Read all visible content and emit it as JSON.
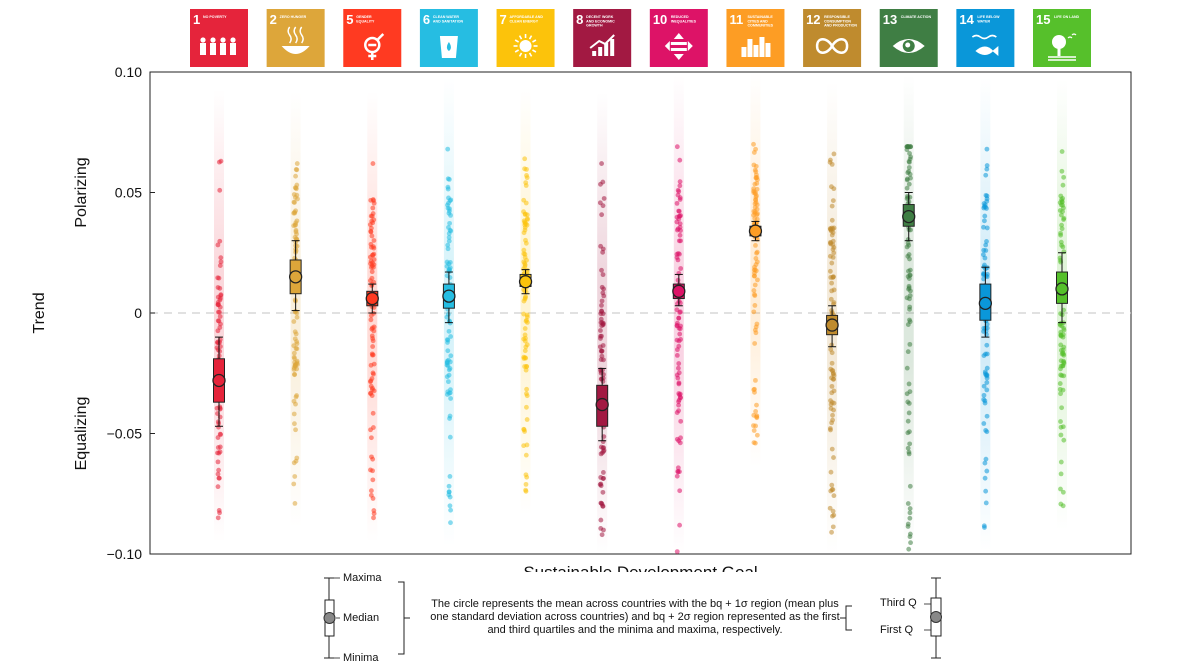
{
  "chart_data": {
    "type": "scatter",
    "ylabel": "Trend",
    "xlabel": "Sustainable Development Goal",
    "ylim": [
      -0.1,
      0.1
    ],
    "yticks": [
      0.1,
      0.05,
      0,
      -0.05,
      -0.1
    ],
    "ytick_labels": [
      "0.10",
      "0.05",
      "0",
      "−0.05",
      "−0.10"
    ],
    "region_labels": {
      "top": "Polarizing",
      "bottom": "Equalizing"
    },
    "goals": [
      {
        "num": "1",
        "title": "NO POVERTY",
        "color": "#e5243b",
        "mean": -0.028,
        "q1": -0.037,
        "q3": -0.019,
        "min": -0.047,
        "max": -0.01,
        "range": [
          -0.085,
          0.063
        ],
        "icon": "people-icon"
      },
      {
        "num": "2",
        "title": "ZERO HUNGER",
        "color": "#dda63a",
        "mean": 0.015,
        "q1": 0.008,
        "q3": 0.022,
        "min": 0.001,
        "max": 0.03,
        "range": [
          -0.079,
          0.062
        ],
        "icon": "bowl-icon"
      },
      {
        "num": "5",
        "title": "GENDER EQUALITY",
        "color": "#ff3a21",
        "mean": 0.006,
        "q1": 0.003,
        "q3": 0.009,
        "min": 0.0,
        "max": 0.012,
        "range": [
          -0.085,
          0.062
        ],
        "icon": "gender-icon"
      },
      {
        "num": "6",
        "title": "CLEAN WATER AND SANITATION",
        "color": "#26bde2",
        "mean": 0.007,
        "q1": 0.002,
        "q3": 0.012,
        "min": -0.004,
        "max": 0.017,
        "range": [
          -0.087,
          0.068
        ],
        "icon": "water-icon"
      },
      {
        "num": "7",
        "title": "AFFORDABLE AND CLEAN ENERGY",
        "color": "#fcc30b",
        "mean": 0.013,
        "q1": 0.011,
        "q3": 0.016,
        "min": 0.008,
        "max": 0.018,
        "range": [
          -0.074,
          0.064
        ],
        "icon": "sun-icon"
      },
      {
        "num": "8",
        "title": "DECENT WORK AND ECONOMIC GROWTH",
        "color": "#a21942",
        "mean": -0.038,
        "q1": -0.047,
        "q3": -0.03,
        "min": -0.053,
        "max": -0.023,
        "range": [
          -0.092,
          0.062
        ],
        "icon": "growth-chart-icon"
      },
      {
        "num": "10",
        "title": "REDUCED INEQUALITIES",
        "color": "#dd1367",
        "mean": 0.009,
        "q1": 0.006,
        "q3": 0.012,
        "min": 0.003,
        "max": 0.016,
        "range": [
          -0.099,
          0.069
        ],
        "icon": "equality-icon"
      },
      {
        "num": "11",
        "title": "SUSTAINABLE CITIES AND COMMUNITIES",
        "color": "#fd9d24",
        "mean": 0.034,
        "q1": 0.032,
        "q3": 0.036,
        "min": 0.03,
        "max": 0.038,
        "range": [
          -0.054,
          0.07
        ],
        "icon": "city-icon"
      },
      {
        "num": "12",
        "title": "RESPONSIBLE CONSUMPTION AND PRODUCTION",
        "color": "#bf8b2e",
        "mean": -0.005,
        "q1": -0.009,
        "q3": -0.001,
        "min": -0.014,
        "max": 0.003,
        "range": [
          -0.091,
          0.066
        ],
        "icon": "infinity-icon"
      },
      {
        "num": "13",
        "title": "CLIMATE ACTION",
        "color": "#3f7e44",
        "mean": 0.04,
        "q1": 0.036,
        "q3": 0.045,
        "min": 0.03,
        "max": 0.05,
        "range": [
          -0.098,
          0.069
        ],
        "icon": "eye-globe-icon"
      },
      {
        "num": "14",
        "title": "LIFE BELOW WATER",
        "color": "#0a97d9",
        "mean": 0.004,
        "q1": -0.003,
        "q3": 0.012,
        "min": -0.01,
        "max": 0.019,
        "range": [
          -0.089,
          0.068
        ],
        "icon": "fish-icon"
      },
      {
        "num": "15",
        "title": "LIFE ON LAND",
        "color": "#56c02b",
        "mean": 0.01,
        "q1": 0.004,
        "q3": 0.017,
        "min": -0.004,
        "max": 0.025,
        "range": [
          -0.08,
          0.067
        ],
        "icon": "tree-icon"
      }
    ]
  },
  "legend": {
    "maxima": "Maxima",
    "median": "Median",
    "minima": "Minima",
    "third_q": "Third Q",
    "first_q": "First Q",
    "text": "The circle represents the mean across countries with the bq + 1σ region (mean plus one standard deviation across countries) and bq + 2σ region represented as the first and third quartiles and the minima and maxima, respectively."
  }
}
